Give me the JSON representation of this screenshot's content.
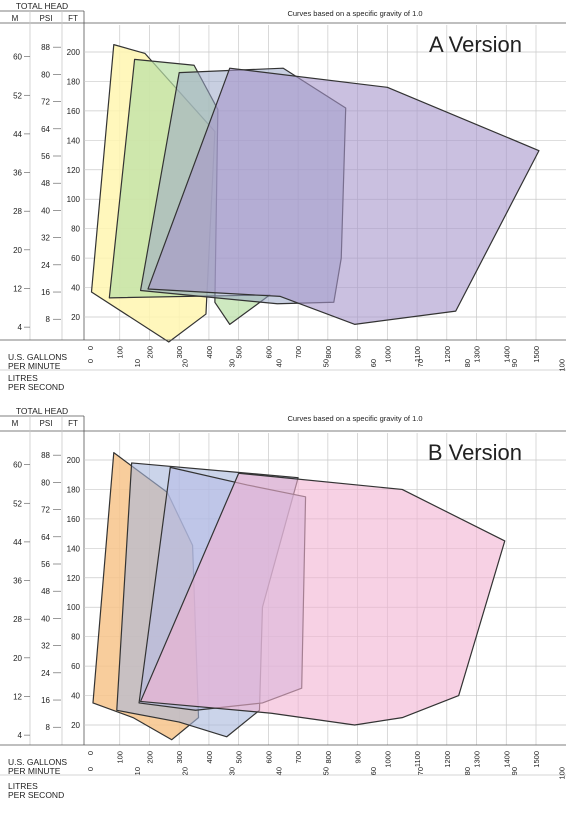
{
  "colors": {
    "grid": "#c9c9c9",
    "axis": "#555555",
    "zone_stroke": "#333333",
    "a_zones": [
      "#fff6b0",
      "#b9e0a5",
      "#9aa8c9",
      "#a696cc"
    ],
    "b_zones": [
      "#f7c48b",
      "#a9b8dc",
      "#b8bde6",
      "#f1b3d2"
    ]
  },
  "chart_data": [
    {
      "type": "area",
      "version_label": "A Version",
      "note": "Curves based on a specific gravity of 1.0",
      "y_title": "TOTAL HEAD",
      "y_units": [
        "M",
        "PSI",
        "FT"
      ],
      "y_ticks": {
        "m": [
          "60",
          "52",
          "44",
          "36",
          "28",
          "20",
          "12",
          "4"
        ],
        "psi": [
          "88",
          "80",
          "72",
          "64",
          "56",
          "48",
          "40",
          "32",
          "24",
          "16",
          "8"
        ],
        "ft": [
          "200",
          "180",
          "160",
          "140",
          "120",
          "100",
          "80",
          "60",
          "40",
          "20"
        ]
      },
      "ylim_ft": [
        0,
        210
      ],
      "x_title": "U.S. GALLONS PER MINUTE",
      "x_ticks": [
        "0",
        "100",
        "200",
        "300",
        "400",
        "500",
        "600",
        "700",
        "800",
        "900",
        "1000",
        "1100",
        "1200",
        "1300",
        "1400",
        "1500"
      ],
      "xlim_gpm": [
        0,
        1600
      ],
      "x2_title": "LITRES PER SECOND",
      "x2_ticks": [
        "0",
        "10",
        "20",
        "30",
        "40",
        "50",
        "60",
        "70",
        "80",
        "90",
        "100"
      ],
      "zones": [
        {
          "points": [
            [
              80,
              205
            ],
            [
              185,
              199
            ],
            [
              420,
              146
            ],
            [
              390,
              22
            ],
            [
              265,
              3
            ],
            [
              5,
              37
            ]
          ]
        },
        {
          "points": [
            [
              150,
              195
            ],
            [
              350,
              191
            ],
            [
              430,
              161
            ],
            [
              420,
              30
            ],
            [
              470,
              15
            ],
            [
              605,
              35
            ],
            [
              65,
              33
            ]
          ]
        },
        {
          "points": [
            [
              300,
              186
            ],
            [
              650,
              189
            ],
            [
              860,
              162
            ],
            [
              845,
              60
            ],
            [
              820,
              30
            ],
            [
              630,
              29
            ],
            [
              170,
              38
            ]
          ]
        },
        {
          "points": [
            [
              470,
              189
            ],
            [
              1000,
              176
            ],
            [
              1510,
              133
            ],
            [
              1230,
              24
            ],
            [
              890,
              15
            ],
            [
              640,
              34
            ],
            [
              195,
              39
            ]
          ]
        }
      ]
    },
    {
      "type": "area",
      "version_label": "B Version",
      "note": "Curves based on a specific gravity of 1.0",
      "y_title": "TOTAL HEAD",
      "y_units": [
        "M",
        "PSI",
        "FT"
      ],
      "y_ticks": {
        "m": [
          "60",
          "52",
          "44",
          "36",
          "28",
          "20",
          "12",
          "4"
        ],
        "psi": [
          "88",
          "80",
          "72",
          "64",
          "56",
          "48",
          "40",
          "32",
          "24",
          "16",
          "8"
        ],
        "ft": [
          "200",
          "180",
          "160",
          "140",
          "120",
          "100",
          "80",
          "60",
          "40",
          "20"
        ]
      },
      "ylim_ft": [
        0,
        210
      ],
      "x_title": "U.S. GALLONS PER MINUTE",
      "x_ticks": [
        "0",
        "100",
        "200",
        "300",
        "400",
        "500",
        "600",
        "700",
        "800",
        "900",
        "1000",
        "1100",
        "1200",
        "1300",
        "1400",
        "1500"
      ],
      "xlim_gpm": [
        0,
        1600
      ],
      "x2_title": "LITRES PER SECOND",
      "x2_ticks": [
        "0",
        "10",
        "20",
        "30",
        "40",
        "50",
        "60",
        "70",
        "80",
        "90",
        "100"
      ],
      "zones": [
        {
          "points": [
            [
              80,
              205
            ],
            [
              260,
              178
            ],
            [
              345,
              142
            ],
            [
              365,
              25
            ],
            [
              275,
              10
            ],
            [
              145,
              25
            ],
            [
              10,
              35
            ]
          ]
        },
        {
          "points": [
            [
              140,
              198
            ],
            [
              700,
              188
            ],
            [
              580,
              100
            ],
            [
              570,
              30
            ],
            [
              460,
              12
            ],
            [
              300,
              22
            ],
            [
              90,
              30
            ]
          ]
        },
        {
          "points": [
            [
              270,
              195
            ],
            [
              530,
              183
            ],
            [
              725,
              175
            ],
            [
              712,
              45
            ],
            [
              580,
              35
            ],
            [
              355,
              30
            ],
            [
              165,
              35
            ]
          ]
        },
        {
          "points": [
            [
              500,
              191
            ],
            [
              1050,
              180
            ],
            [
              1395,
              145
            ],
            [
              1240,
              40
            ],
            [
              1050,
              25
            ],
            [
              890,
              20
            ],
            [
              610,
              28
            ],
            [
              170,
              36
            ]
          ]
        }
      ]
    }
  ]
}
